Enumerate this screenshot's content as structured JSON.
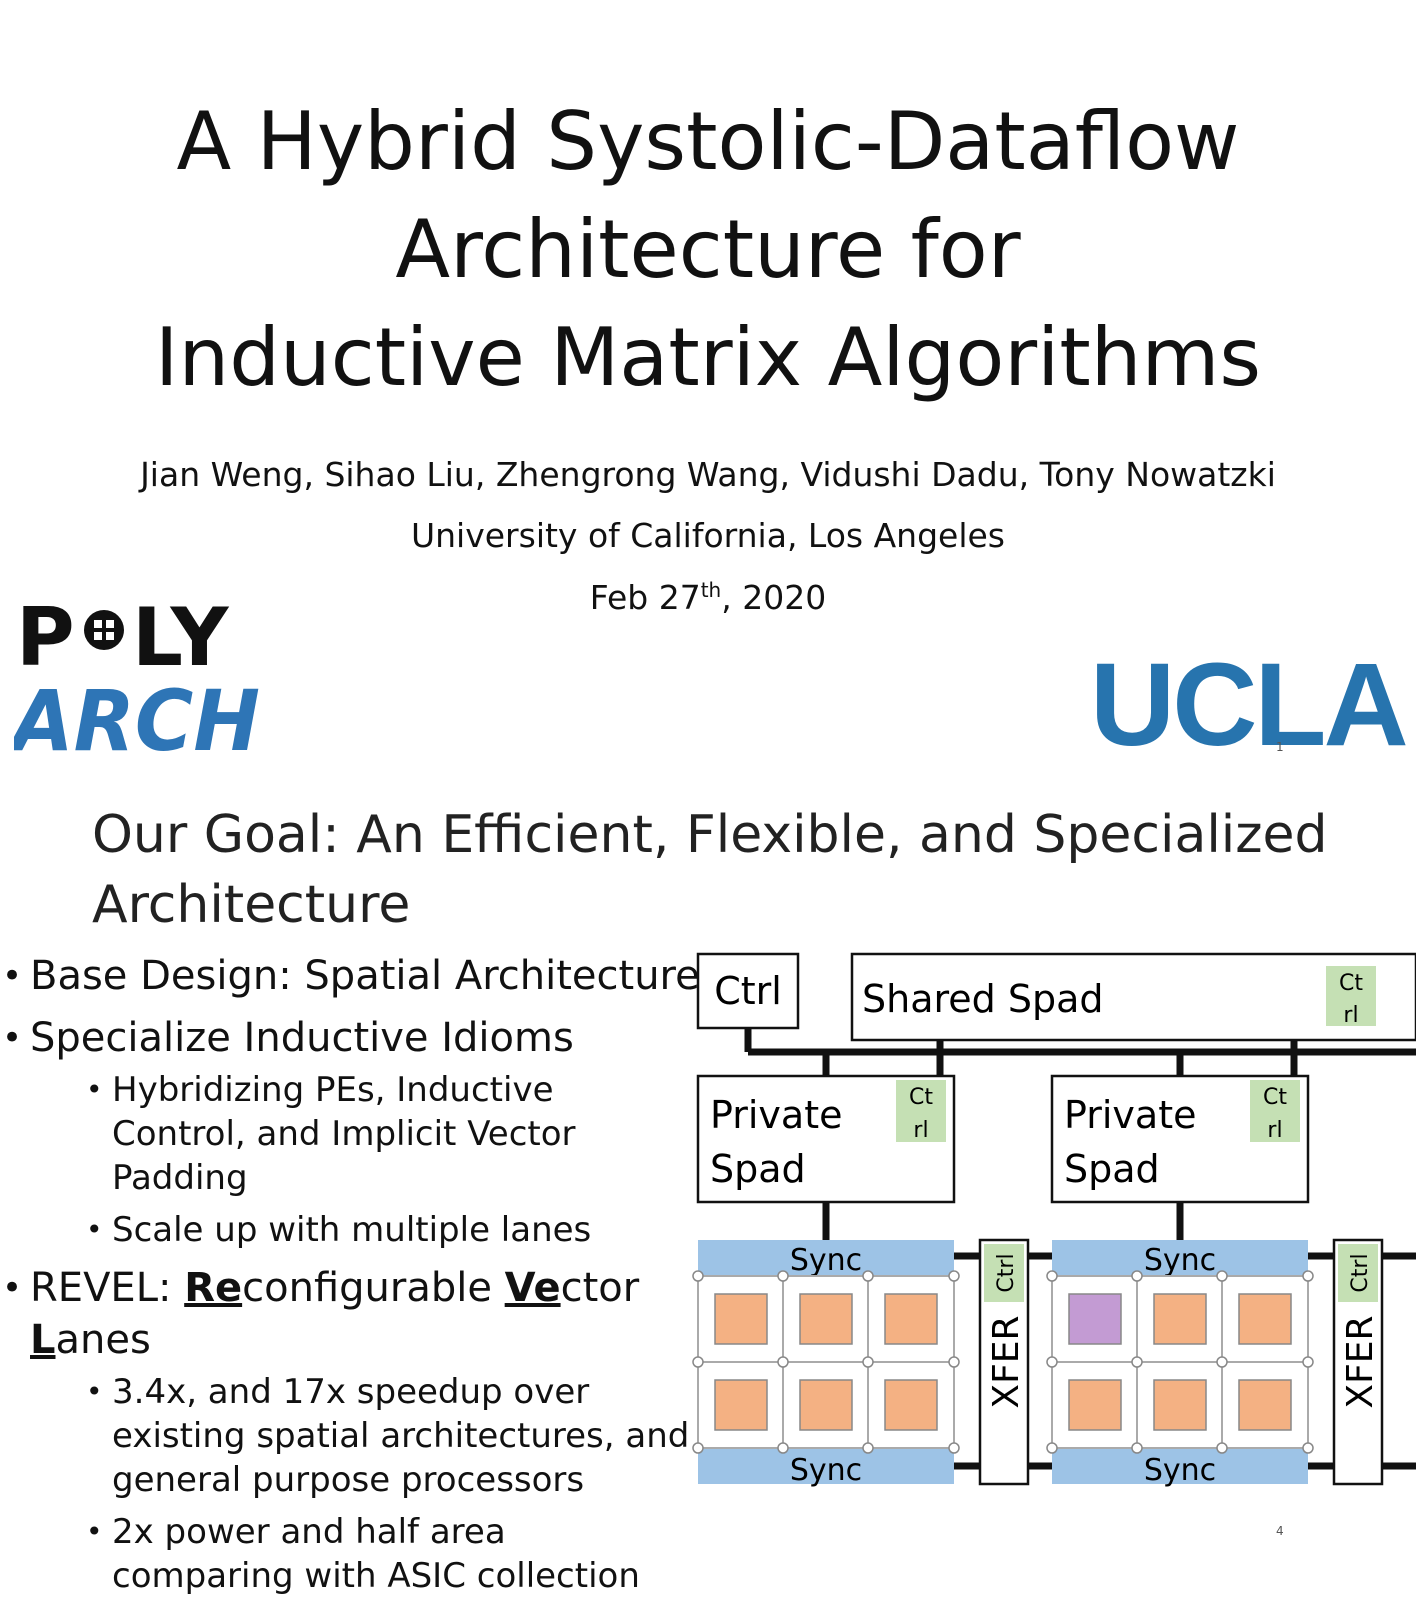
{
  "slide1": {
    "title_lines": [
      "A Hybrid Systolic-Dataflow",
      "Architecture for",
      "Inductive Matrix Algorithms"
    ],
    "authors": "Jian Weng, Sihao Liu, Zhengrong Wang, Vidushi Dadu, Tony Nowatzki",
    "affiliation": "University of California, Los Angeles",
    "date_main": "Feb 27",
    "date_sup": "th",
    "date_year": ", 2020",
    "logo_poly_text": "POLY",
    "logo_arch_text": "ARCH",
    "logo_ucla": "UCLA",
    "page_number": "1"
  },
  "slide2": {
    "title": "Our Goal: An Efficient, Flexible, and Specialized Architecture",
    "bullets": {
      "b1": "Base Design: Spatial Architecture",
      "b2": "Specialize Inductive Idioms",
      "b2_sub1": "Hybridizing PEs, Inductive Control, and Implicit Vector Padding",
      "b2_sub2": "Scale up with multiple lanes",
      "b3_prefix": "REVEL: ",
      "b3_re": "Re",
      "b3_configurable": "configurable ",
      "b3_ve": "Ve",
      "b3_ctor": "ctor",
      "b3_l": "L",
      "b3_anes": "anes",
      "b3_sub1": "3.4x, and 17x speedup over existing spatial architectures, and general purpose processors",
      "b3_sub2": "2x power and half area comparing with ASIC collection"
    },
    "diagram": {
      "ctrl": "Ctrl",
      "shared_spad": "Shared Spad",
      "ctrl_tag_line1": "Ct",
      "ctrl_tag_line2": "rl",
      "private_spad_line1": "Private",
      "private_spad_line2": "Spad",
      "sync": "Sync",
      "xfer": "XFER",
      "ctrl_vertical": "Ctrl"
    },
    "colors": {
      "sync_bar": "#9dc3e6",
      "pe_orange": "#f4b183",
      "pe_purple": "#c39bd3",
      "ctrl_green": "#c5e0b4",
      "ucla_blue": "#2774ae"
    },
    "page_number": "4"
  }
}
